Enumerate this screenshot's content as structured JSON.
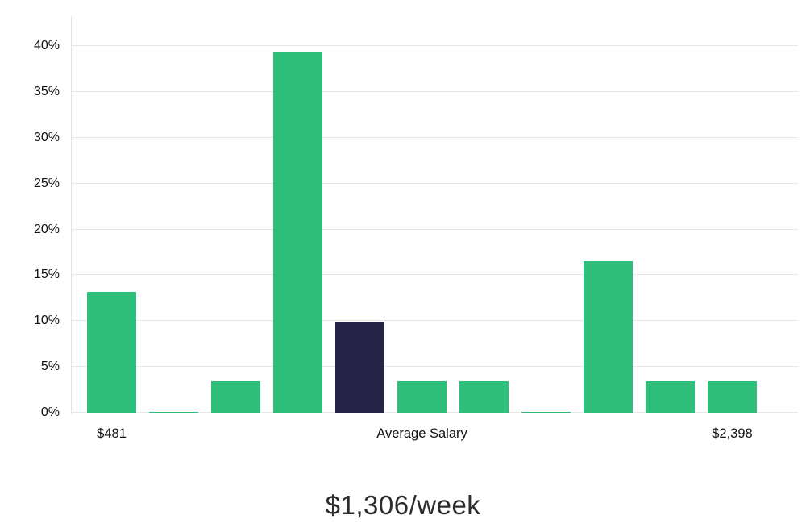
{
  "chart_data": {
    "type": "bar",
    "title": "$1,306/week",
    "values": [
      13.2,
      0.1,
      3.4,
      39.4,
      9.9,
      3.4,
      3.4,
      0.1,
      16.5,
      3.4,
      3.4
    ],
    "bar_colors": [
      "green",
      "green",
      "green",
      "green",
      "dark",
      "green",
      "green",
      "green",
      "green",
      "green",
      "green"
    ],
    "highlight_index": 4,
    "colors": {
      "green": "#2ebf7a",
      "dark": "#252347",
      "gridline": "#e8e8e8",
      "text": "#111111"
    },
    "y_ticks": [
      0,
      5,
      10,
      15,
      20,
      25,
      30,
      35,
      40
    ],
    "y_tick_suffix": "%",
    "ylim": [
      0,
      40
    ],
    "grid": "horizontal",
    "legend": "none",
    "x_labels": {
      "left": "$481",
      "center": "Average Salary",
      "right": "$2,398"
    }
  }
}
